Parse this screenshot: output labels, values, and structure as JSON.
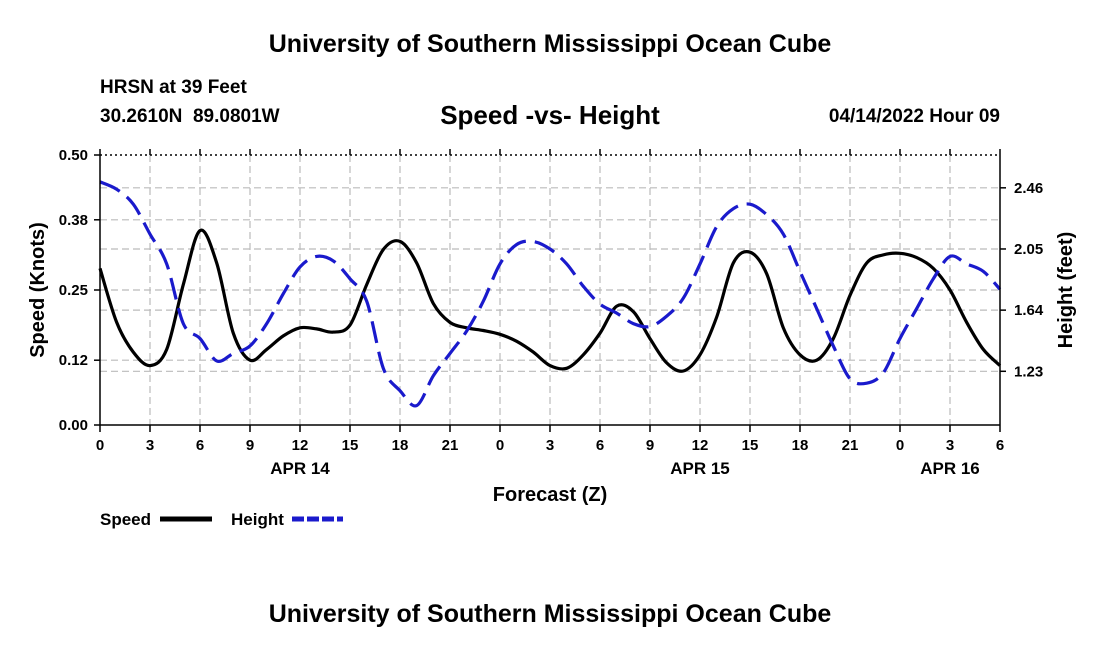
{
  "page": {
    "title": "University of Southern Mississippi Ocean Cube",
    "station_name": "HRSN at 39 Feet",
    "station_coords": "30.2610N  89.0801W",
    "forecast_time": "04/14/2022 Hour 09",
    "footer_title": "University of Southern Mississippi Ocean Cube"
  },
  "colors": {
    "speed": "#000000",
    "height": "#1a1acc",
    "grid": "#bbbbbb",
    "axis": "#000000"
  },
  "chart_data": {
    "type": "line",
    "title": "Speed -vs- Height",
    "xlabel": "Forecast (Z)",
    "ylabel": "Speed (Knots)",
    "y2label": "Height (feet)",
    "x_range": [
      0,
      54
    ],
    "ylim": [
      0,
      0.5
    ],
    "y2lim": [
      0.87,
      2.68
    ],
    "x_ticks": [
      0,
      3,
      6,
      9,
      12,
      15,
      18,
      21,
      24,
      27,
      30,
      33,
      36,
      39,
      42,
      45,
      48,
      51,
      54
    ],
    "x_tick_labels": [
      "0",
      "3",
      "6",
      "9",
      "12",
      "15",
      "18",
      "21",
      "0",
      "3",
      "6",
      "9",
      "12",
      "15",
      "18",
      "21",
      "0",
      "3",
      "6"
    ],
    "date_labels": [
      {
        "x": 12,
        "label": "APR 14"
      },
      {
        "x": 36,
        "label": "APR 15"
      },
      {
        "x": 51,
        "label": "APR 16"
      }
    ],
    "y_ticks": [
      0,
      0.12,
      0.25,
      0.38,
      0.5
    ],
    "y_tick_labels": [
      "0.00",
      "0.12",
      "0.25",
      "0.38",
      "0.50"
    ],
    "y2_ticks": [
      1.23,
      1.64,
      2.05,
      2.46
    ],
    "y2_tick_labels": [
      "1.23",
      "1.64",
      "2.05",
      "2.46"
    ],
    "grid": true,
    "legend": [
      {
        "name": "Speed",
        "style": "solid"
      },
      {
        "name": "Height",
        "style": "dashed"
      }
    ],
    "series": [
      {
        "name": "Speed",
        "axis": "left",
        "style": "solid",
        "x": [
          0,
          1,
          2,
          3,
          4,
          5,
          6,
          7,
          8,
          9,
          10,
          11,
          12,
          13,
          14,
          15,
          16,
          17,
          18,
          19,
          20,
          21,
          22,
          23,
          24,
          25,
          26,
          27,
          28,
          29,
          30,
          31,
          32,
          33,
          34,
          35,
          36,
          37,
          38,
          39,
          40,
          41,
          42,
          43,
          44,
          45,
          46,
          47,
          48,
          49,
          50,
          51,
          52,
          53,
          54
        ],
        "values": [
          0.29,
          0.19,
          0.135,
          0.11,
          0.14,
          0.26,
          0.36,
          0.3,
          0.17,
          0.12,
          0.14,
          0.165,
          0.18,
          0.178,
          0.172,
          0.185,
          0.26,
          0.325,
          0.34,
          0.3,
          0.225,
          0.19,
          0.18,
          0.175,
          0.168,
          0.155,
          0.135,
          0.11,
          0.105,
          0.13,
          0.17,
          0.22,
          0.21,
          0.16,
          0.115,
          0.1,
          0.13,
          0.2,
          0.3,
          0.32,
          0.28,
          0.18,
          0.13,
          0.12,
          0.16,
          0.24,
          0.3,
          0.315,
          0.318,
          0.31,
          0.29,
          0.25,
          0.19,
          0.14,
          0.11
        ]
      },
      {
        "name": "Height",
        "axis": "right",
        "style": "dashed",
        "x": [
          0,
          1,
          2,
          3,
          4,
          5,
          6,
          7,
          8,
          9,
          10,
          11,
          12,
          13,
          14,
          15,
          16,
          17,
          18,
          19,
          20,
          21,
          22,
          23,
          24,
          25,
          26,
          27,
          28,
          29,
          30,
          31,
          32,
          33,
          34,
          35,
          36,
          37,
          38,
          39,
          40,
          41,
          42,
          43,
          44,
          45,
          46,
          47,
          48,
          49,
          50,
          51,
          52,
          53,
          54
        ],
        "values": [
          2.5,
          2.45,
          2.35,
          2.15,
          1.95,
          1.55,
          1.45,
          1.3,
          1.35,
          1.4,
          1.55,
          1.75,
          1.93,
          2.0,
          1.97,
          1.85,
          1.7,
          1.25,
          1.1,
          1.0,
          1.2,
          1.35,
          1.5,
          1.7,
          1.95,
          2.08,
          2.1,
          2.05,
          1.95,
          1.8,
          1.68,
          1.62,
          1.55,
          1.53,
          1.6,
          1.72,
          1.95,
          2.2,
          2.32,
          2.35,
          2.28,
          2.15,
          1.9,
          1.65,
          1.4,
          1.18,
          1.15,
          1.22,
          1.45,
          1.65,
          1.85,
          2.0,
          1.95,
          1.9,
          1.78
        ]
      }
    ]
  }
}
